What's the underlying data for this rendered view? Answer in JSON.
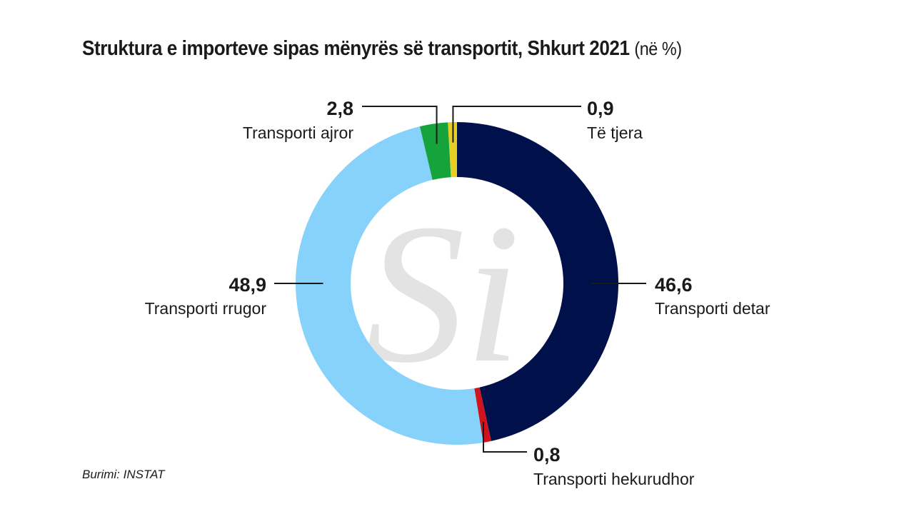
{
  "header": {
    "title": "Struktura e importeve sipas mënyrës së transportit, Shkurt 2021",
    "unit": "(në %)"
  },
  "source": "Burimi: INSTAT",
  "watermark": "Si",
  "chart_data": {
    "type": "pie",
    "variant": "donut",
    "title": "Struktura e importeve sipas mënyrës së transportit, Shkurt 2021",
    "unit": "(në %)",
    "slices": [
      {
        "label": "Transporti detar",
        "value": 46.6,
        "display": "46,6",
        "color": "#00104b"
      },
      {
        "label": "Transporti hekurudhor",
        "value": 0.8,
        "display": "0,8",
        "color": "#d0141d"
      },
      {
        "label": "Transporti rrugor",
        "value": 48.9,
        "display": "48,9",
        "color": "#87d2fb"
      },
      {
        "label": "Transporti ajror",
        "value": 2.8,
        "display": "2,8",
        "color": "#17a33b"
      },
      {
        "label": "Të tjera",
        "value": 0.9,
        "display": "0,9",
        "color": "#e6cf24"
      }
    ]
  }
}
